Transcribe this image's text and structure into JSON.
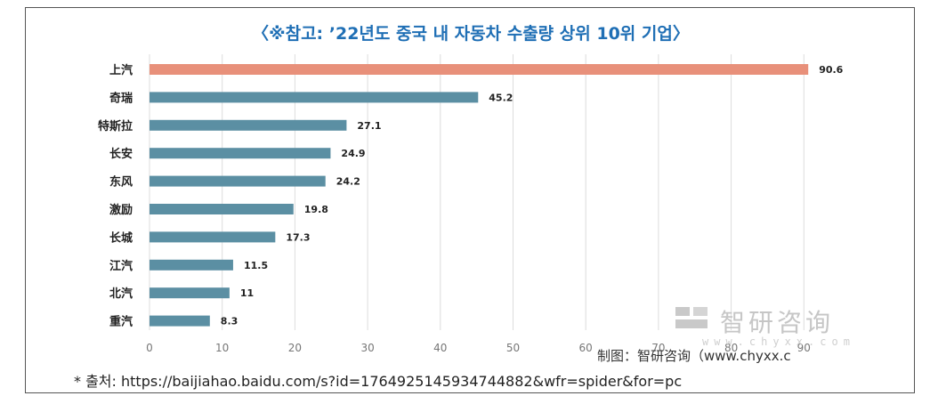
{
  "title": "〈※참고: ’22년도 중국 내 자동차 수출량 상위 10위 기업〉",
  "credit": "制图：智研咨询（www.chyxx.c",
  "watermark": {
    "name": "智研咨询",
    "url": "www.chyxx.com"
  },
  "source": "* 출처: https://baijiahao.baidu.com/s?id=1764925145934744882&wfr=spider&for=pc",
  "colors": {
    "highlight": "#e8907a",
    "bar": "#5b8fa3",
    "title": "#1f6fb5"
  },
  "chart_data": {
    "type": "bar",
    "orientation": "horizontal",
    "categories": [
      "上汽",
      "奇瑞",
      "特斯拉",
      "长安",
      "东风",
      "激励",
      "长城",
      "江汽",
      "北汽",
      "重汽"
    ],
    "values": [
      90.6,
      45.2,
      27.1,
      24.9,
      24.2,
      19.8,
      17.3,
      11.5,
      11,
      8.3
    ],
    "xticks": [
      0,
      10,
      20,
      30,
      40,
      50,
      60,
      70,
      80,
      90
    ],
    "xlim": [
      0,
      90
    ],
    "grid": true,
    "title": "〈※참고: ’22년도 중국 내 자동차 수출량 상위 10위 기업〉",
    "xlabel": "",
    "ylabel": ""
  }
}
